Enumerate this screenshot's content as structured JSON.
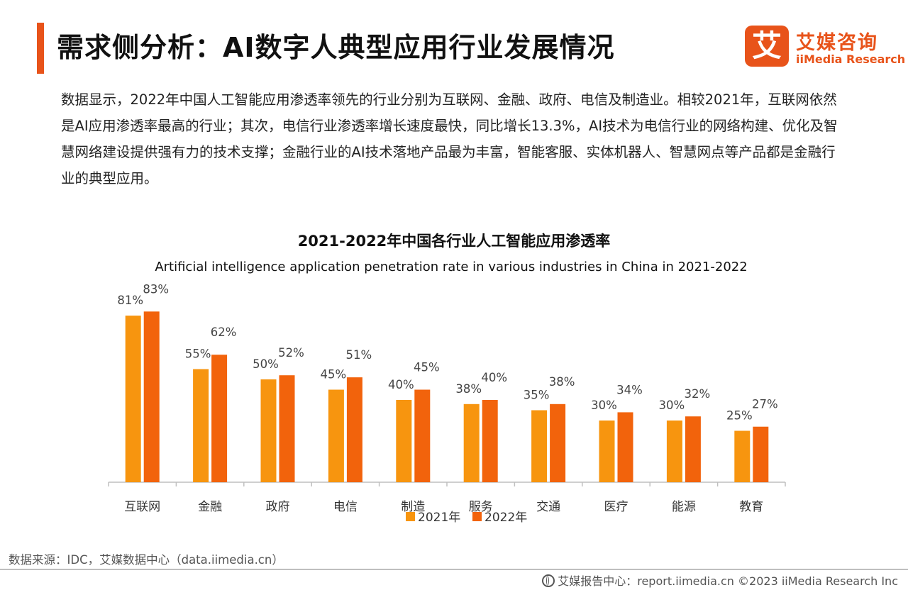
{
  "header": {
    "title": "需求侧分析：AI数字人典型应用行业发展情况",
    "logo_mark": "艾",
    "logo_cn": "艾媒咨询",
    "logo_en": "iiMedia Research"
  },
  "intro": "数据显示，2022年中国人工智能应用渗透率领先的行业分别为互联网、金融、政府、电信及制造业。相较2021年，互联网依然是AI应用渗透率最高的行业；其次，电信行业渗透率增长速度最快，同比增长13.3%，AI技术为电信行业的网络构建、优化及智慧网络建设提供强有力的技术支撑；金融行业的AI技术落地产品最为丰富，智能客服、实体机器人、智慧网点等产品都是金融行业的典型应用。",
  "chart_data": {
    "type": "bar",
    "title": "2021-2022年中国各行业人工智能应用渗透率",
    "subtitle": "Artificial intelligence application penetration rate in various industries in China in 2021-2022",
    "categories": [
      "互联网",
      "金融",
      "政府",
      "电信",
      "制造",
      "服务",
      "交通",
      "医疗",
      "能源",
      "教育"
    ],
    "series": [
      {
        "name": "2021年",
        "values": [
          81,
          55,
          50,
          45,
          40,
          38,
          35,
          30,
          30,
          25
        ],
        "labels": [
          "81%",
          "55%",
          "50%",
          "45%",
          "40%",
          "38%",
          "35%",
          "30%",
          "30%",
          "25%"
        ],
        "color": "#f7950f"
      },
      {
        "name": "2022年",
        "values": [
          83,
          62,
          52,
          51,
          45,
          40,
          38,
          34,
          32,
          27
        ],
        "labels": [
          "83%",
          "62%",
          "52%",
          "51%",
          "45%",
          "40%",
          "38%",
          "34%",
          "32%",
          "27%"
        ],
        "color": "#f2630c"
      }
    ],
    "ylim": [
      0,
      100
    ],
    "grid": false,
    "legend": "bottom"
  },
  "footer": {
    "source": "数据来源：IDC，艾媒数据中心（data.iimedia.cn）",
    "credit": "艾媒报告中心：report.iimedia.cn  ©2023  iiMedia Research  Inc"
  }
}
